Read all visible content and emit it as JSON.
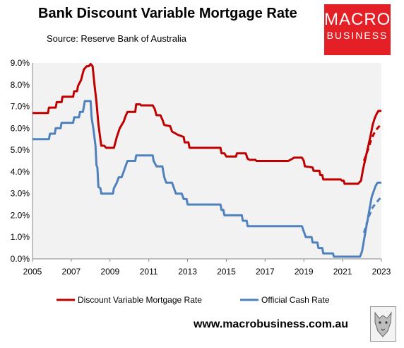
{
  "header": {
    "title": "Bank Discount Variable Mortgage Rate",
    "source": "Source: Reserve Bank of Australia"
  },
  "logo": {
    "line1": "MACRO",
    "line2": "BUSINESS"
  },
  "footer": {
    "url": "www.macrobusiness.com.au"
  },
  "colors": {
    "mortgage": "#c00000",
    "cash": "#4f81bd",
    "plot_bg": "#f2f2f2"
  },
  "chart_data": {
    "type": "line",
    "title": "Bank Discount Variable Mortgage Rate",
    "xlim": [
      2005,
      2023
    ],
    "ylim": [
      0,
      9
    ],
    "grid": false,
    "legend_position": "bottom",
    "x_ticks": [
      "2005",
      "2007",
      "2009",
      "2011",
      "2013",
      "2015",
      "2017",
      "2019",
      "2021",
      "2023"
    ],
    "y_ticks": [
      "0.0%",
      "1.0%",
      "2.0%",
      "3.0%",
      "4.0%",
      "5.0%",
      "6.0%",
      "7.0%",
      "8.0%",
      "9.0%"
    ],
    "series": [
      {
        "name": "Discount Variable Mortgage Rate",
        "color": "#c00000",
        "style": "solid",
        "points": [
          [
            2005.0,
            6.7
          ],
          [
            2005.8,
            6.7
          ],
          [
            2005.85,
            6.95
          ],
          [
            2006.2,
            6.95
          ],
          [
            2006.25,
            7.2
          ],
          [
            2006.5,
            7.2
          ],
          [
            2006.55,
            7.45
          ],
          [
            2007.1,
            7.45
          ],
          [
            2007.15,
            7.7
          ],
          [
            2007.3,
            7.7
          ],
          [
            2007.35,
            7.95
          ],
          [
            2007.5,
            8.2
          ],
          [
            2007.65,
            8.7
          ],
          [
            2007.8,
            8.85
          ],
          [
            2007.9,
            8.85
          ],
          [
            2008.0,
            8.95
          ],
          [
            2008.1,
            8.85
          ],
          [
            2008.2,
            8.0
          ],
          [
            2008.3,
            7.2
          ],
          [
            2008.4,
            6.2
          ],
          [
            2008.5,
            5.5
          ],
          [
            2008.55,
            5.2
          ],
          [
            2008.7,
            5.2
          ],
          [
            2008.8,
            5.1
          ],
          [
            2009.2,
            5.1
          ],
          [
            2009.35,
            5.6
          ],
          [
            2009.5,
            6.0
          ],
          [
            2009.7,
            6.3
          ],
          [
            2009.8,
            6.55
          ],
          [
            2009.9,
            6.75
          ],
          [
            2010.3,
            6.75
          ],
          [
            2010.35,
            7.1
          ],
          [
            2010.55,
            7.1
          ],
          [
            2010.6,
            7.05
          ],
          [
            2011.2,
            7.05
          ],
          [
            2011.3,
            6.9
          ],
          [
            2011.4,
            6.6
          ],
          [
            2011.6,
            6.6
          ],
          [
            2011.7,
            6.4
          ],
          [
            2011.8,
            6.15
          ],
          [
            2012.1,
            6.1
          ],
          [
            2012.2,
            5.85
          ],
          [
            2012.5,
            5.7
          ],
          [
            2012.8,
            5.6
          ],
          [
            2012.85,
            5.35
          ],
          [
            2013.05,
            5.35
          ],
          [
            2013.1,
            5.1
          ],
          [
            2014.7,
            5.1
          ],
          [
            2014.75,
            4.85
          ],
          [
            2014.9,
            4.85
          ],
          [
            2015.0,
            4.7
          ],
          [
            2015.5,
            4.7
          ],
          [
            2015.55,
            4.85
          ],
          [
            2016.0,
            4.85
          ],
          [
            2016.1,
            4.6
          ],
          [
            2016.2,
            4.55
          ],
          [
            2016.5,
            4.55
          ],
          [
            2016.55,
            4.5
          ],
          [
            2017.5,
            4.5
          ],
          [
            2018.2,
            4.5
          ],
          [
            2018.4,
            4.6
          ],
          [
            2018.5,
            4.65
          ],
          [
            2018.9,
            4.65
          ],
          [
            2019.0,
            4.5
          ],
          [
            2019.05,
            4.25
          ],
          [
            2019.45,
            4.2
          ],
          [
            2019.5,
            4.05
          ],
          [
            2019.8,
            4.05
          ],
          [
            2019.85,
            3.85
          ],
          [
            2019.95,
            3.85
          ],
          [
            2020.0,
            3.65
          ],
          [
            2020.9,
            3.65
          ],
          [
            2020.95,
            3.6
          ],
          [
            2021.05,
            3.6
          ],
          [
            2021.1,
            3.45
          ],
          [
            2021.8,
            3.45
          ],
          [
            2021.95,
            3.6
          ],
          [
            2022.05,
            4.1
          ],
          [
            2022.15,
            4.5
          ],
          [
            2022.25,
            4.9
          ],
          [
            2022.35,
            5.3
          ],
          [
            2022.45,
            5.7
          ],
          [
            2022.55,
            6.15
          ],
          [
            2022.65,
            6.45
          ],
          [
            2022.75,
            6.65
          ],
          [
            2022.85,
            6.8
          ],
          [
            2023.0,
            6.8
          ]
        ]
      },
      {
        "name": "",
        "color": "#c00000",
        "style": "dashed",
        "points": [
          [
            2022.1,
            4.5
          ],
          [
            2022.3,
            5.0
          ],
          [
            2022.5,
            5.55
          ],
          [
            2022.7,
            5.9
          ],
          [
            2022.85,
            6.05
          ],
          [
            2023.0,
            6.2
          ]
        ]
      },
      {
        "name": "Official Cash Rate",
        "color": "#4f81bd",
        "style": "solid",
        "points": [
          [
            2005.0,
            5.5
          ],
          [
            2005.85,
            5.5
          ],
          [
            2005.9,
            5.75
          ],
          [
            2006.15,
            5.75
          ],
          [
            2006.2,
            6.0
          ],
          [
            2006.45,
            6.0
          ],
          [
            2006.5,
            6.25
          ],
          [
            2007.1,
            6.25
          ],
          [
            2007.15,
            6.5
          ],
          [
            2007.4,
            6.5
          ],
          [
            2007.45,
            6.75
          ],
          [
            2007.6,
            6.75
          ],
          [
            2007.65,
            7.0
          ],
          [
            2007.7,
            7.25
          ],
          [
            2008.0,
            7.25
          ],
          [
            2008.05,
            6.5
          ],
          [
            2008.15,
            5.9
          ],
          [
            2008.25,
            5.2
          ],
          [
            2008.3,
            4.3
          ],
          [
            2008.35,
            4.2
          ],
          [
            2008.4,
            3.3
          ],
          [
            2008.5,
            3.25
          ],
          [
            2008.55,
            3.0
          ],
          [
            2009.15,
            3.0
          ],
          [
            2009.2,
            3.25
          ],
          [
            2009.35,
            3.5
          ],
          [
            2009.45,
            3.75
          ],
          [
            2009.6,
            3.75
          ],
          [
            2009.7,
            4.0
          ],
          [
            2009.8,
            4.25
          ],
          [
            2009.9,
            4.5
          ],
          [
            2010.3,
            4.5
          ],
          [
            2010.35,
            4.75
          ],
          [
            2011.2,
            4.75
          ],
          [
            2011.25,
            4.5
          ],
          [
            2011.4,
            4.25
          ],
          [
            2011.7,
            4.25
          ],
          [
            2011.8,
            3.75
          ],
          [
            2011.9,
            3.5
          ],
          [
            2012.2,
            3.5
          ],
          [
            2012.3,
            3.25
          ],
          [
            2012.4,
            3.0
          ],
          [
            2012.7,
            3.0
          ],
          [
            2012.8,
            2.75
          ],
          [
            2012.95,
            2.75
          ],
          [
            2013.0,
            2.5
          ],
          [
            2014.7,
            2.5
          ],
          [
            2014.75,
            2.25
          ],
          [
            2014.85,
            2.25
          ],
          [
            2014.9,
            2.0
          ],
          [
            2015.8,
            2.0
          ],
          [
            2015.85,
            1.75
          ],
          [
            2016.05,
            1.75
          ],
          [
            2016.1,
            1.5
          ],
          [
            2018.9,
            1.5
          ],
          [
            2019.0,
            1.25
          ],
          [
            2019.1,
            1.0
          ],
          [
            2019.4,
            1.0
          ],
          [
            2019.45,
            0.75
          ],
          [
            2019.7,
            0.75
          ],
          [
            2019.75,
            0.5
          ],
          [
            2019.95,
            0.5
          ],
          [
            2020.0,
            0.25
          ],
          [
            2020.5,
            0.25
          ],
          [
            2020.55,
            0.1
          ],
          [
            2021.9,
            0.1
          ],
          [
            2022.0,
            0.35
          ],
          [
            2022.1,
            0.85
          ],
          [
            2022.2,
            1.35
          ],
          [
            2022.3,
            1.85
          ],
          [
            2022.4,
            2.35
          ],
          [
            2022.5,
            2.85
          ],
          [
            2022.6,
            3.1
          ],
          [
            2022.7,
            3.35
          ],
          [
            2022.8,
            3.5
          ],
          [
            2023.0,
            3.5
          ]
        ]
      },
      {
        "name": "",
        "color": "#4f81bd",
        "style": "dashed",
        "points": [
          [
            2022.1,
            1.2
          ],
          [
            2022.3,
            1.8
          ],
          [
            2022.5,
            2.3
          ],
          [
            2022.7,
            2.55
          ],
          [
            2022.85,
            2.7
          ],
          [
            2023.0,
            2.85
          ]
        ]
      }
    ]
  }
}
